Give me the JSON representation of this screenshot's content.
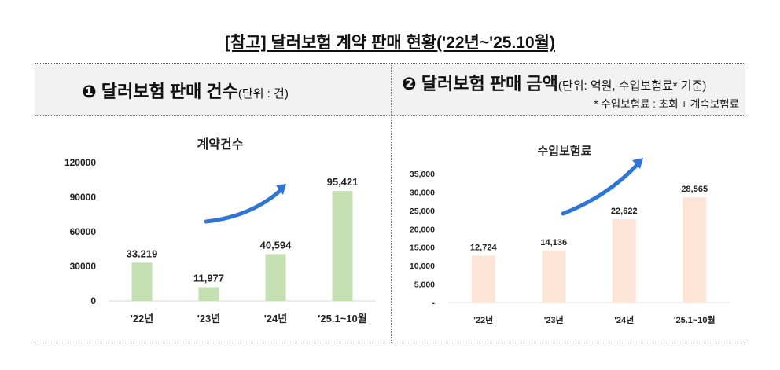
{
  "title": "[참고] 달러보험 계약 판매 현황('22년~'25.10월)",
  "panel_left": {
    "number_icon": "❶",
    "heading": "달러보험 판매 건수",
    "unit": "(단위 : 건)"
  },
  "panel_right": {
    "number_icon": "❷",
    "heading": "달러보험 판매 금액",
    "unit": "(단위: 억원, 수입보험료* 기준)",
    "note": "* 수입보험료 : 초회 + 계속보험료"
  },
  "chart_data": [
    {
      "type": "bar",
      "title": "계약건수",
      "categories": [
        "'22년",
        "'23년",
        "'24년",
        "'25.1~10월"
      ],
      "values": [
        33219,
        11977,
        40594,
        95421
      ],
      "data_labels": [
        "33.219",
        "11,977",
        "40,594",
        "95,421"
      ],
      "ylim": [
        0,
        120000
      ],
      "yticks": [
        "0",
        "30000",
        "60000",
        "90000",
        "120000"
      ],
      "ytick_values": [
        0,
        30000,
        60000,
        90000,
        120000
      ],
      "bar_color": "#c5e0b3",
      "grid": false,
      "trend_arrow": true,
      "arrow_color": "#2e75d6"
    },
    {
      "type": "bar",
      "title": "수입보험료",
      "categories": [
        "'22년",
        "'23년",
        "'24년",
        "'25.1~10월"
      ],
      "values": [
        12724,
        14136,
        22622,
        28565
      ],
      "data_labels": [
        "12,724",
        "14,136",
        "22,622",
        "28,565"
      ],
      "ylim": [
        0,
        35000
      ],
      "yticks": [
        "-",
        "5,000",
        "10,000",
        "15,000",
        "20,000",
        "25,000",
        "30,000",
        "35,000"
      ],
      "ytick_values": [
        0,
        5000,
        10000,
        15000,
        20000,
        25000,
        30000,
        35000
      ],
      "bar_color": "#fce4d6",
      "grid": false,
      "trend_arrow": true,
      "arrow_color": "#2e75d6"
    }
  ]
}
